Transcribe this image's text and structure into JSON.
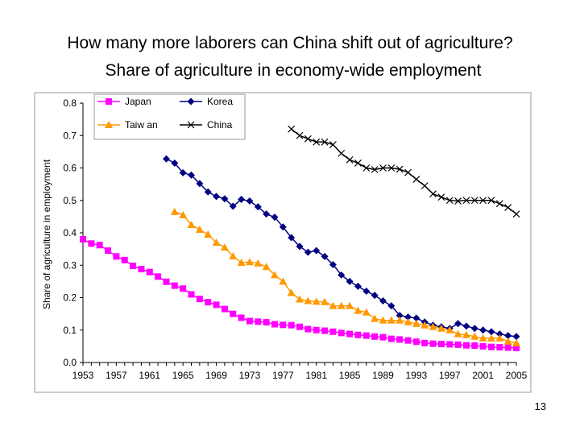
{
  "slide": {
    "title_line1": "How many more laborers can China shift out of agriculture?",
    "title_line2": "Share of agriculture in economy-wide employment",
    "page_number": "13"
  },
  "chart_data": {
    "type": "line",
    "title": "",
    "xlabel": "",
    "ylabel": "Share of agriculture in employment",
    "xlim": [
      1953,
      2005
    ],
    "ylim": [
      0,
      0.8
    ],
    "x_ticks": [
      "1953",
      "1957",
      "1961",
      "1965",
      "1969",
      "1973",
      "1977",
      "1981",
      "1985",
      "1989",
      "1993",
      "1997",
      "2001",
      "2005"
    ],
    "y_ticks": [
      "0.0",
      "0.1",
      "0.2",
      "0.3",
      "0.4",
      "0.5",
      "0.6",
      "0.7",
      "0.8"
    ],
    "grid": false,
    "legend": [
      "Japan",
      "Korea",
      "Taiw an",
      "China"
    ],
    "legend_placement": "top-left",
    "series": [
      {
        "name": "Japan",
        "color": "#ff00ff",
        "marker": "square",
        "x": [
          1953,
          1954,
          1955,
          1956,
          1957,
          1958,
          1959,
          1960,
          1961,
          1962,
          1963,
          1964,
          1965,
          1966,
          1967,
          1968,
          1969,
          1970,
          1971,
          1972,
          1973,
          1974,
          1975,
          1976,
          1977,
          1978,
          1979,
          1980,
          1981,
          1982,
          1983,
          1984,
          1985,
          1986,
          1987,
          1988,
          1989,
          1990,
          1991,
          1992,
          1993,
          1994,
          1995,
          1996,
          1997,
          1998,
          1999,
          2000,
          2001,
          2002,
          2003,
          2004,
          2005
        ],
        "y": [
          0.38,
          0.367,
          0.362,
          0.345,
          0.327,
          0.316,
          0.298,
          0.288,
          0.279,
          0.265,
          0.249,
          0.237,
          0.228,
          0.21,
          0.196,
          0.186,
          0.178,
          0.165,
          0.15,
          0.138,
          0.128,
          0.126,
          0.124,
          0.118,
          0.116,
          0.115,
          0.11,
          0.103,
          0.1,
          0.098,
          0.095,
          0.091,
          0.088,
          0.085,
          0.083,
          0.08,
          0.078,
          0.073,
          0.071,
          0.068,
          0.064,
          0.06,
          0.058,
          0.057,
          0.056,
          0.055,
          0.053,
          0.052,
          0.05,
          0.048,
          0.047,
          0.046,
          0.045
        ]
      },
      {
        "name": "Korea",
        "color": "#000080",
        "marker": "diamond",
        "x": [
          1963,
          1964,
          1965,
          1966,
          1967,
          1968,
          1969,
          1970,
          1971,
          1972,
          1973,
          1974,
          1975,
          1976,
          1977,
          1978,
          1979,
          1980,
          1981,
          1982,
          1983,
          1984,
          1985,
          1986,
          1987,
          1988,
          1989,
          1990,
          1991,
          1992,
          1993,
          1994,
          1995,
          1996,
          1997,
          1998,
          1999,
          2000,
          2001,
          2002,
          2003,
          2004,
          2005
        ],
        "y": [
          0.628,
          0.615,
          0.585,
          0.578,
          0.552,
          0.526,
          0.512,
          0.505,
          0.482,
          0.503,
          0.498,
          0.48,
          0.458,
          0.448,
          0.418,
          0.385,
          0.358,
          0.34,
          0.345,
          0.327,
          0.302,
          0.27,
          0.25,
          0.235,
          0.22,
          0.207,
          0.19,
          0.175,
          0.145,
          0.14,
          0.137,
          0.125,
          0.115,
          0.11,
          0.105,
          0.12,
          0.112,
          0.105,
          0.1,
          0.095,
          0.088,
          0.083,
          0.08
        ]
      },
      {
        "name": "Taiw an",
        "color": "#ff9900",
        "marker": "triangle",
        "x": [
          1964,
          1965,
          1966,
          1967,
          1968,
          1969,
          1970,
          1971,
          1972,
          1973,
          1974,
          1975,
          1976,
          1977,
          1978,
          1979,
          1980,
          1981,
          1982,
          1983,
          1984,
          1985,
          1986,
          1987,
          1988,
          1989,
          1990,
          1991,
          1992,
          1993,
          1994,
          1995,
          1996,
          1997,
          1998,
          1999,
          2000,
          2001,
          2002,
          2003,
          2004,
          2005
        ],
        "y": [
          0.465,
          0.455,
          0.425,
          0.41,
          0.395,
          0.37,
          0.355,
          0.328,
          0.308,
          0.31,
          0.306,
          0.295,
          0.27,
          0.25,
          0.215,
          0.195,
          0.19,
          0.188,
          0.187,
          0.175,
          0.175,
          0.175,
          0.16,
          0.155,
          0.135,
          0.13,
          0.13,
          0.13,
          0.125,
          0.12,
          0.115,
          0.11,
          0.105,
          0.1,
          0.088,
          0.085,
          0.08,
          0.075,
          0.075,
          0.075,
          0.065,
          0.06
        ]
      },
      {
        "name": "China",
        "color": "#000000",
        "marker": "x",
        "x": [
          1978,
          1979,
          1980,
          1981,
          1982,
          1983,
          1984,
          1985,
          1986,
          1987,
          1988,
          1989,
          1990,
          1991,
          1992,
          1993,
          1994,
          1995,
          1996,
          1997,
          1998,
          1999,
          2000,
          2001,
          2002,
          2003,
          2004,
          2005
        ],
        "y": [
          0.72,
          0.7,
          0.69,
          0.68,
          0.68,
          0.672,
          0.645,
          0.625,
          0.615,
          0.6,
          0.595,
          0.6,
          0.6,
          0.596,
          0.586,
          0.565,
          0.545,
          0.52,
          0.51,
          0.5,
          0.498,
          0.5,
          0.5,
          0.5,
          0.5,
          0.49,
          0.478,
          0.458
        ]
      }
    ]
  }
}
